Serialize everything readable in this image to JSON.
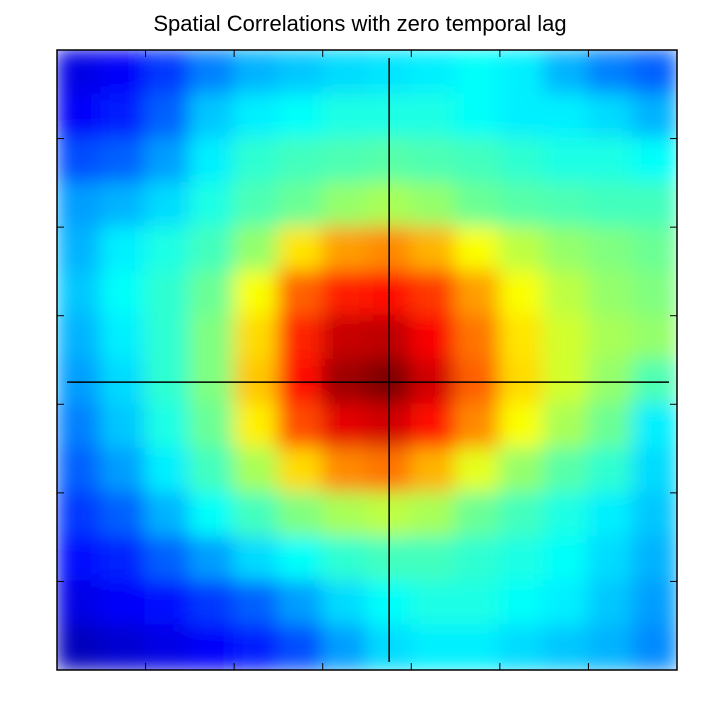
{
  "chart_data": {
    "type": "heatmap",
    "title": "Spatial Correlations with zero temporal lag",
    "xlabel": "",
    "ylabel": "",
    "colormap": "jet",
    "grid": false,
    "show_tick_labels": false,
    "crosshair": true,
    "rows": 14,
    "cols": 14,
    "value_range": [
      0,
      1
    ],
    "peak_value": 1.0,
    "values": [
      [
        0.1,
        0.12,
        0.18,
        0.25,
        0.3,
        0.32,
        0.34,
        0.35,
        0.36,
        0.38,
        0.36,
        0.3,
        0.25,
        0.22
      ],
      [
        0.12,
        0.15,
        0.22,
        0.32,
        0.36,
        0.38,
        0.4,
        0.4,
        0.4,
        0.38,
        0.36,
        0.36,
        0.34,
        0.3
      ],
      [
        0.2,
        0.22,
        0.28,
        0.36,
        0.42,
        0.44,
        0.45,
        0.46,
        0.45,
        0.44,
        0.42,
        0.4,
        0.4,
        0.38
      ],
      [
        0.28,
        0.3,
        0.34,
        0.4,
        0.45,
        0.48,
        0.52,
        0.54,
        0.52,
        0.48,
        0.46,
        0.45,
        0.44,
        0.44
      ],
      [
        0.3,
        0.36,
        0.4,
        0.44,
        0.52,
        0.65,
        0.72,
        0.74,
        0.7,
        0.62,
        0.56,
        0.52,
        0.5,
        0.48
      ],
      [
        0.32,
        0.38,
        0.42,
        0.48,
        0.62,
        0.78,
        0.85,
        0.86,
        0.82,
        0.72,
        0.62,
        0.56,
        0.52,
        0.5
      ],
      [
        0.3,
        0.36,
        0.42,
        0.5,
        0.66,
        0.84,
        0.93,
        0.94,
        0.88,
        0.76,
        0.65,
        0.58,
        0.54,
        0.52
      ],
      [
        0.28,
        0.34,
        0.42,
        0.5,
        0.68,
        0.86,
        0.97,
        1.0,
        0.92,
        0.78,
        0.66,
        0.58,
        0.52,
        0.45
      ],
      [
        0.25,
        0.32,
        0.4,
        0.48,
        0.64,
        0.8,
        0.9,
        0.92,
        0.86,
        0.74,
        0.62,
        0.54,
        0.48,
        0.36
      ],
      [
        0.22,
        0.28,
        0.36,
        0.44,
        0.54,
        0.66,
        0.74,
        0.76,
        0.7,
        0.6,
        0.52,
        0.46,
        0.42,
        0.34
      ],
      [
        0.18,
        0.22,
        0.3,
        0.38,
        0.44,
        0.5,
        0.54,
        0.56,
        0.54,
        0.48,
        0.44,
        0.4,
        0.36,
        0.32
      ],
      [
        0.14,
        0.16,
        0.22,
        0.28,
        0.34,
        0.38,
        0.42,
        0.44,
        0.44,
        0.42,
        0.4,
        0.38,
        0.34,
        0.3
      ],
      [
        0.1,
        0.12,
        0.14,
        0.18,
        0.22,
        0.28,
        0.34,
        0.38,
        0.4,
        0.4,
        0.38,
        0.36,
        0.32,
        0.28
      ],
      [
        0.06,
        0.08,
        0.1,
        0.12,
        0.15,
        0.2,
        0.28,
        0.34,
        0.36,
        0.36,
        0.34,
        0.32,
        0.3,
        0.26
      ]
    ]
  }
}
